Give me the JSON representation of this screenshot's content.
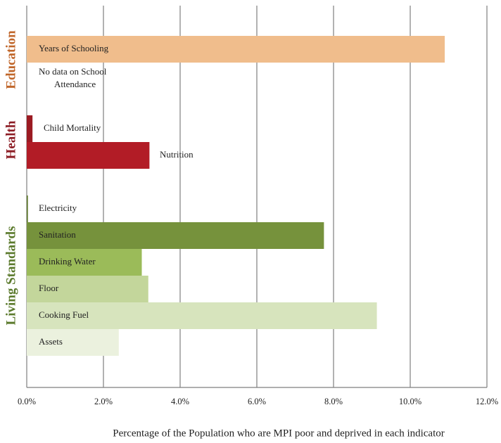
{
  "chart_data": {
    "type": "bar",
    "orientation": "horizontal",
    "title": "",
    "xlabel": "Percentage of the Population who are MPI poor and deprived in each indicator",
    "ylabel": "",
    "xlim": [
      0,
      12
    ],
    "x_ticks": [
      "0.0%",
      "2.0%",
      "4.0%",
      "6.0%",
      "8.0%",
      "10.0%",
      "12.0%"
    ],
    "x_tick_values": [
      0,
      2,
      4,
      6,
      8,
      10,
      12
    ],
    "grid": "vertical",
    "legend": "none",
    "groups": [
      {
        "name": "Education",
        "color": "#c0662a"
      },
      {
        "name": "Health",
        "color": "#8c1c24"
      },
      {
        "name": "Living Standards",
        "color": "#5b7a2c"
      }
    ],
    "bars": [
      {
        "label": "Years of Schooling",
        "value": 10.9,
        "group": "Education",
        "color": "#f0bd8c"
      },
      {
        "label": "No data on School Attendance",
        "label_lines": [
          "No data on School",
          "Attendance"
        ],
        "value": null,
        "group": "Education",
        "color": "#f0bd8c"
      },
      {
        "label": "Child Mortality",
        "value": 0.15,
        "group": "Health",
        "color": "#9b1a22"
      },
      {
        "label": "Nutrition",
        "value": 3.2,
        "group": "Health",
        "color": "#b21c26"
      },
      {
        "label": "Electricity",
        "value": 0.03,
        "group": "Living Standards",
        "color": "#5a7526"
      },
      {
        "label": "Sanitation",
        "value": 7.75,
        "group": "Living Standards",
        "color": "#76923c"
      },
      {
        "label": "Drinking Water",
        "value": 3.0,
        "group": "Living Standards",
        "color": "#9bbb59"
      },
      {
        "label": "Floor",
        "value": 3.17,
        "group": "Living Standards",
        "color": "#c3d69b"
      },
      {
        "label": "Cooking Fuel",
        "value": 9.13,
        "group": "Living Standards",
        "color": "#d7e4bd"
      },
      {
        "label": "Assets",
        "value": 2.4,
        "group": "Living Standards",
        "color": "#ebf1de"
      }
    ]
  }
}
